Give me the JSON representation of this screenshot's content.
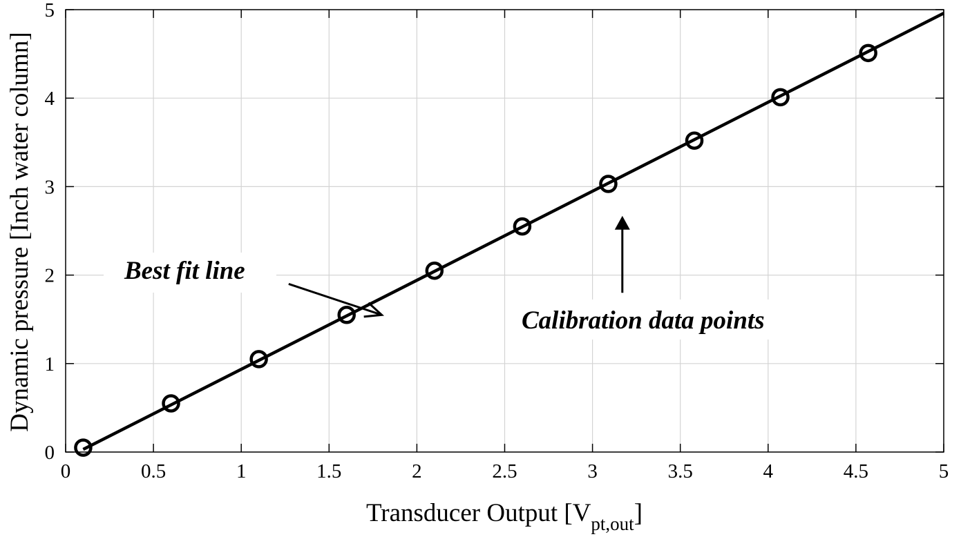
{
  "chart_data": {
    "type": "scatter",
    "xlabel_main": "Transducer Output [V",
    "xlabel_sub": "pt,out",
    "xlabel_close": "]",
    "ylabel": "Dynamic pressure [Inch water column]",
    "xlim": [
      0,
      5
    ],
    "ylim": [
      0,
      5
    ],
    "xticks": [
      0,
      0.5,
      1,
      1.5,
      2,
      2.5,
      3,
      3.5,
      4,
      4.5,
      5
    ],
    "xtick_labels": [
      "0",
      "0.5",
      "1",
      "1.5",
      "2",
      "2.5",
      "3",
      "3.5",
      "4",
      "4.5",
      "5"
    ],
    "yticks": [
      0,
      1,
      2,
      3,
      4,
      5
    ],
    "ytick_labels": [
      "0",
      "1",
      "2",
      "3",
      "4",
      "5"
    ],
    "grid": true,
    "legend": "none",
    "series": [
      {
        "kind": "markers",
        "marker": "open-circle",
        "color": "#000000",
        "points": [
          [
            0.1,
            0.05
          ],
          [
            0.6,
            0.55
          ],
          [
            1.1,
            1.05
          ],
          [
            1.6,
            1.55
          ],
          [
            2.1,
            2.05
          ],
          [
            2.6,
            2.55
          ],
          [
            3.09,
            3.03
          ],
          [
            3.58,
            3.52
          ],
          [
            4.07,
            4.01
          ],
          [
            4.57,
            4.51
          ]
        ]
      },
      {
        "kind": "line",
        "color": "#000000",
        "points": [
          [
            0.1,
            0.03
          ],
          [
            5.0,
            4.96
          ]
        ]
      }
    ],
    "annotations": [
      {
        "text": "Best fit line",
        "arrow_from": [
          1.27,
          1.9
        ],
        "arrow_to": [
          1.8,
          1.55
        ]
      },
      {
        "text": "Calibration data points",
        "arrow_from": [
          3.17,
          1.8
        ],
        "arrow_to": [
          3.17,
          2.67
        ]
      }
    ]
  }
}
